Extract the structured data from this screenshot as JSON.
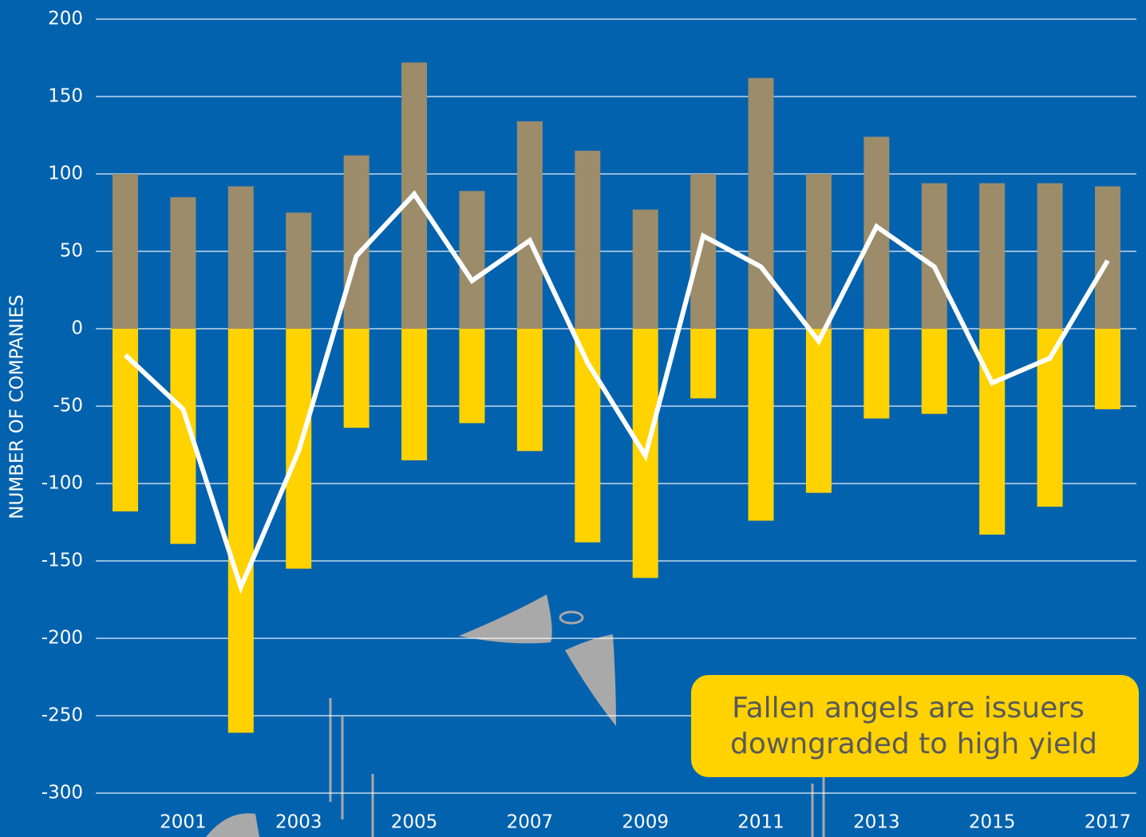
{
  "chart_data": {
    "type": "bar",
    "y_label": "NUMBER OF COMPANIES",
    "annotation": [
      "Fallen angels are issuers",
      "downgraded to high yield"
    ],
    "categories": [
      null,
      "2001",
      null,
      "2003",
      null,
      "2005",
      null,
      "2007",
      null,
      "2009",
      null,
      "2011",
      null,
      "2013",
      null,
      "2015",
      null,
      "2017"
    ],
    "series": [
      {
        "type": "bar",
        "color": "#9c8c6a",
        "values": [
          100,
          85,
          92,
          75,
          112,
          172,
          89,
          134,
          115,
          77,
          100,
          162,
          100,
          124,
          94,
          94,
          94,
          92
        ]
      },
      {
        "type": "bar",
        "color": "#ffd200",
        "values": [
          -118,
          -139,
          -261,
          -155,
          -64,
          -85,
          -61,
          -79,
          -138,
          -161,
          -45,
          -124,
          -106,
          -58,
          -55,
          -133,
          -115,
          -52
        ]
      },
      {
        "type": "line",
        "color": "#ffffff",
        "values": [
          -17,
          -52,
          -167,
          -79,
          47,
          87,
          31,
          57,
          -22,
          -82,
          60,
          40,
          -8,
          66,
          40,
          -35,
          -19,
          44
        ]
      }
    ],
    "ylim": [
      -300,
      200
    ],
    "yticks": [
      -300,
      -250,
      -200,
      -150,
      -100,
      -50,
      0,
      50,
      100,
      150,
      200
    ],
    "grid": true
  }
}
